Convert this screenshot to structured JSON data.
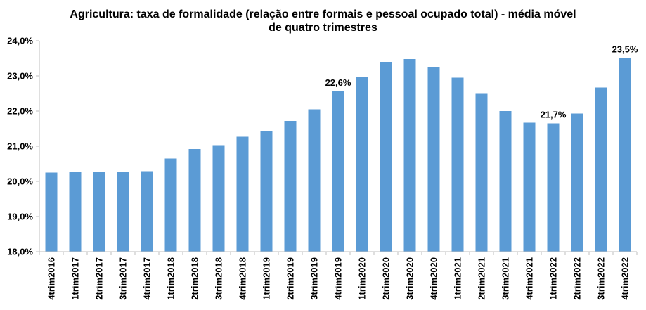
{
  "chart_data": {
    "type": "bar",
    "title_lines": [
      "Agricultura: taxa de formalidade (relação entre formais e pessoal ocupado total) - média móvel",
      "de quatro trimestres"
    ],
    "xlabel": "",
    "ylabel": "",
    "ylim": [
      18.0,
      24.0
    ],
    "yticks": [
      "18,0%",
      "19,0%",
      "20,0%",
      "21,0%",
      "22,0%",
      "23,0%",
      "24,0%"
    ],
    "ytick_values": [
      18,
      19,
      20,
      21,
      22,
      23,
      24
    ],
    "categories": [
      "4trim2016",
      "1trim2017",
      "2trim2017",
      "3trim2017",
      "4trim2017",
      "1trim2018",
      "2trim2018",
      "3trim2018",
      "4trim2018",
      "1trim2019",
      "2trim2019",
      "3trim2019",
      "4trim2019",
      "1trim2020",
      "2trim2020",
      "3trim2020",
      "4trim2020",
      "1trim2021",
      "2trim2021",
      "3trim2021",
      "4trim2021",
      "1trim2022",
      "2trim2022",
      "3trim2022",
      "4trim2022"
    ],
    "values": [
      20.25,
      20.26,
      20.28,
      20.26,
      20.29,
      20.65,
      20.92,
      21.03,
      21.27,
      21.42,
      21.72,
      22.05,
      22.56,
      22.97,
      23.4,
      23.48,
      23.25,
      22.95,
      22.49,
      22.0,
      21.67,
      21.65,
      21.93,
      22.67,
      23.51
    ],
    "data_labels": [
      {
        "index": 12,
        "text": "22,6%"
      },
      {
        "index": 21,
        "text": "21,7%"
      },
      {
        "index": 24,
        "text": "23,5%"
      }
    ],
    "bar_color": "#5b9bd5",
    "axis_color": "#bfbfbf",
    "grid": false,
    "legend": "none"
  }
}
